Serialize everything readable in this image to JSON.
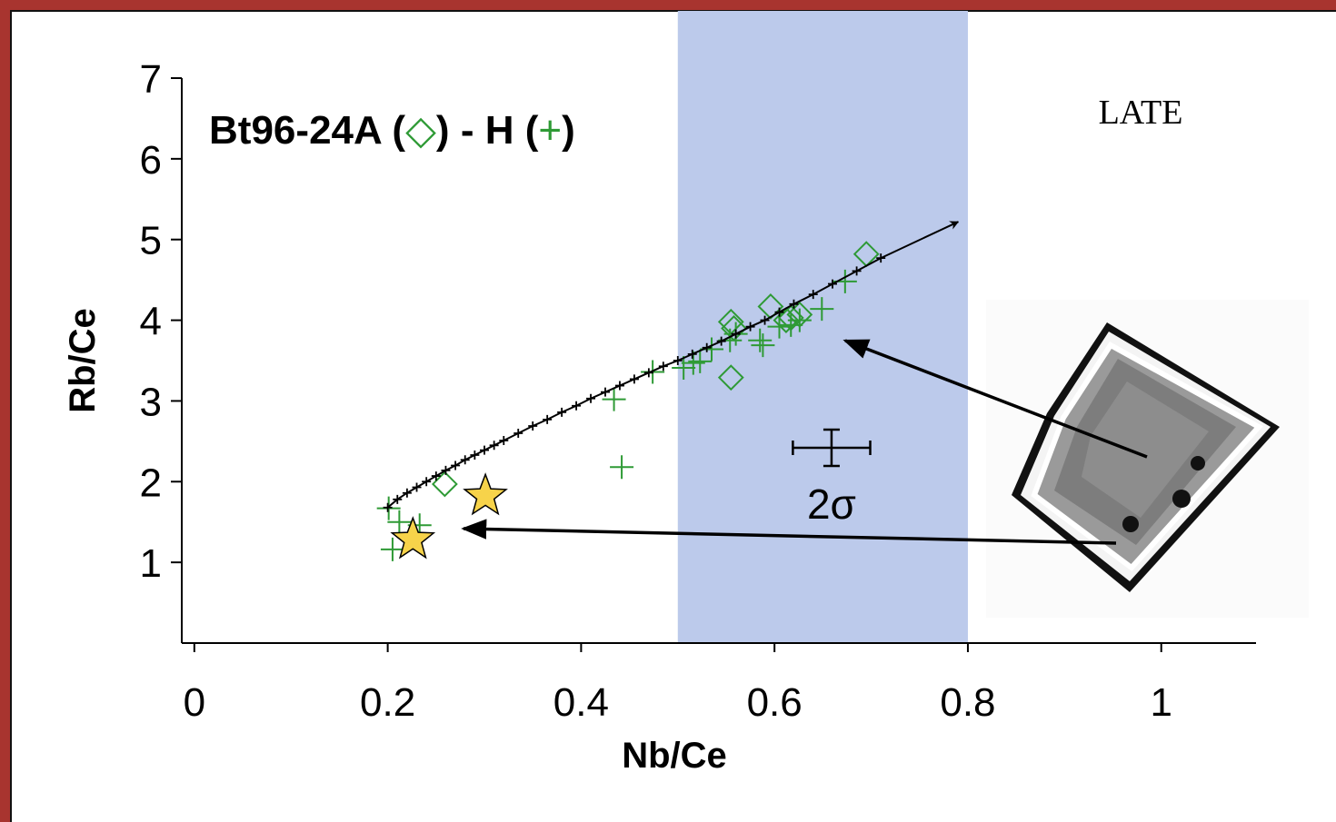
{
  "chart_data": {
    "type": "scatter",
    "title": "Bt96-24A (◇) - H (+)",
    "x_label": "Nb/Ce",
    "y_label": "Rb/Ce",
    "xlim": [
      -0.013,
      1.098
    ],
    "ylim": [
      0,
      7
    ],
    "xticks": [
      0,
      0.2,
      0.4,
      0.6,
      0.8,
      1
    ],
    "yticks": [
      1,
      2,
      3,
      4,
      5,
      6,
      7
    ],
    "band": {
      "x": [
        0.5,
        0.8
      ],
      "color": "#bccaeb"
    },
    "annotation": "LATE",
    "series": [
      {
        "marker": "diamond",
        "color": "#2e9a35",
        "x": [
          0.259,
          0.555,
          0.558,
          0.596,
          0.617,
          0.626,
          0.695,
          0.555,
          0.612
        ],
        "values": [
          1.97,
          3.98,
          3.9,
          4.17,
          4.03,
          4.07,
          4.82,
          3.29,
          4.0
        ]
      },
      {
        "marker": "plus",
        "color": "#2e9a35",
        "x": [
          0.201,
          0.205,
          0.212,
          0.233,
          0.434,
          0.442,
          0.474,
          0.506,
          0.516,
          0.523,
          0.535,
          0.554,
          0.56,
          0.585,
          0.588,
          0.605,
          0.617,
          0.626,
          0.649,
          0.673
        ],
        "values": [
          1.67,
          1.16,
          1.5,
          1.46,
          3.02,
          2.18,
          3.36,
          3.41,
          3.47,
          3.49,
          3.64,
          3.75,
          3.83,
          3.75,
          3.69,
          3.92,
          3.94,
          4.0,
          4.14,
          4.48
        ]
      },
      {
        "marker": "line-tick",
        "color": "#000000",
        "x": [
          0.2,
          0.21,
          0.22,
          0.23,
          0.24,
          0.25,
          0.26,
          0.27,
          0.28,
          0.29,
          0.3,
          0.31,
          0.32,
          0.335,
          0.35,
          0.365,
          0.38,
          0.395,
          0.41,
          0.425,
          0.44,
          0.455,
          0.47,
          0.485,
          0.5,
          0.515,
          0.53,
          0.545,
          0.56,
          0.575,
          0.59,
          0.605,
          0.62,
          0.64,
          0.66,
          0.685,
          0.71
        ],
        "values": [
          1.68,
          1.78,
          1.86,
          1.93,
          2.0,
          2.07,
          2.14,
          2.2,
          2.27,
          2.33,
          2.39,
          2.45,
          2.51,
          2.6,
          2.69,
          2.77,
          2.86,
          2.94,
          3.03,
          3.11,
          3.19,
          3.27,
          3.35,
          3.43,
          3.5,
          3.58,
          3.66,
          3.74,
          3.83,
          3.92,
          4.0,
          4.1,
          4.2,
          4.32,
          4.45,
          4.61,
          4.77
        ],
        "arrow_to": {
          "x": 0.79,
          "y": 5.22
        }
      },
      {
        "marker": "star",
        "color": "#f7d34a",
        "x": [
          0.301,
          0.226
        ],
        "values": [
          1.82,
          1.28
        ]
      }
    ],
    "error_bar": {
      "x": 0.659,
      "y": 2.42,
      "xerr": 0.04,
      "yerr": 0.225,
      "label": "2σ"
    }
  }
}
